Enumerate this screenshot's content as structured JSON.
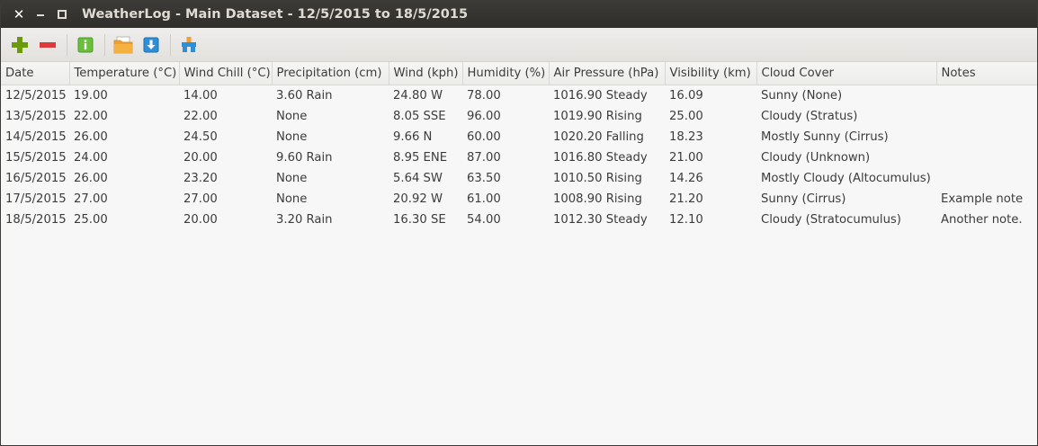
{
  "window": {
    "title": "WeatherLog - Main Dataset - 12/5/2015 to 18/5/2015"
  },
  "toolbar": {
    "buttons": [
      {
        "icon": "add-icon",
        "color": "#6b9b0a"
      },
      {
        "icon": "remove-icon",
        "color": "#df3a3a"
      },
      {
        "icon": "info-icon",
        "color": "#6abf3b"
      },
      {
        "icon": "open-folder-icon",
        "color": "#f0a030"
      },
      {
        "icon": "download-icon",
        "color": "#2d8fd8"
      },
      {
        "icon": "tools-icon",
        "color": "#2d8fd8"
      }
    ]
  },
  "table": {
    "columns": [
      "Date",
      "Temperature (°C)",
      "Wind Chill (°C)",
      "Precipitation (cm)",
      "Wind (kph)",
      "Humidity (%)",
      "Air Pressure (hPa)",
      "Visibility (km)",
      "Cloud Cover",
      "Notes"
    ],
    "rows": [
      [
        "12/5/2015",
        "19.00",
        "14.00",
        "3.60 Rain",
        "24.80 W",
        "78.00",
        "1016.90 Steady",
        "16.09",
        "Sunny (None)",
        ""
      ],
      [
        "13/5/2015",
        "22.00",
        "22.00",
        "None",
        "8.05 SSE",
        "96.00",
        "1019.90 Rising",
        "25.00",
        "Cloudy (Stratus)",
        ""
      ],
      [
        "14/5/2015",
        "26.00",
        "24.50",
        "None",
        "9.66 N",
        "60.00",
        "1020.20 Falling",
        "18.23",
        "Mostly Sunny (Cirrus)",
        ""
      ],
      [
        "15/5/2015",
        "24.00",
        "20.00",
        "9.60 Rain",
        "8.95 ENE",
        "87.00",
        "1016.80 Steady",
        "21.00",
        "Cloudy (Unknown)",
        ""
      ],
      [
        "16/5/2015",
        "26.00",
        "23.20",
        "None",
        "5.64 SW",
        "63.50",
        "1010.50 Rising",
        "14.26",
        "Mostly Cloudy (Altocumulus)",
        ""
      ],
      [
        "17/5/2015",
        "27.00",
        "27.00",
        "None",
        "20.92 W",
        "61.00",
        "1008.90 Rising",
        "21.20",
        "Sunny (Cirrus)",
        "Example note"
      ],
      [
        "18/5/2015",
        "25.00",
        "20.00",
        "3.20 Rain",
        "16.30 SE",
        "54.00",
        "1012.30 Steady",
        "12.10",
        "Cloudy (Stratocumulus)",
        "Another note."
      ]
    ]
  }
}
